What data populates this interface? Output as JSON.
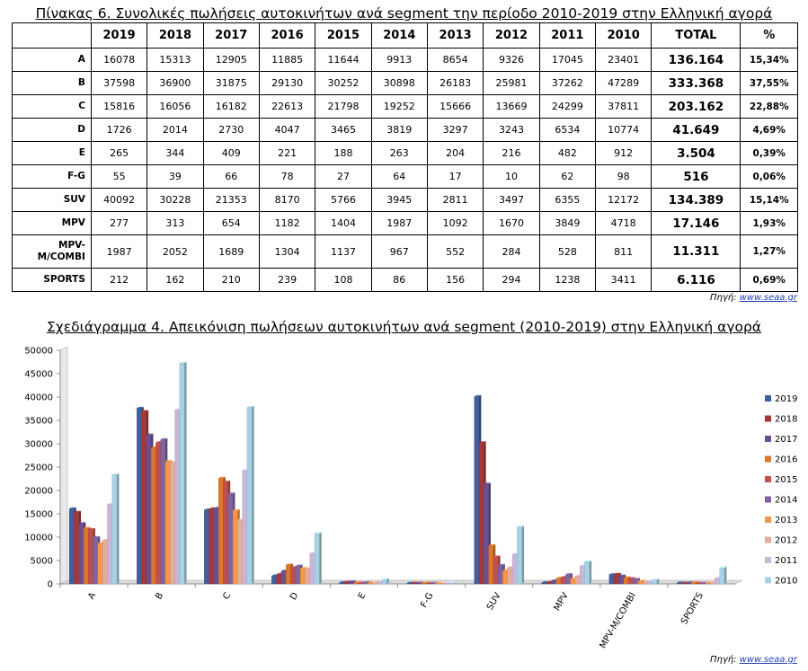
{
  "table_title": "Πίνακας 6. Συνολικές πωλήσεις αυτοκινήτων ανά segment την περίοδο 2010-2019 στην Ελληνική αγορά",
  "chart_title": "Σχεδιάγραμμα 4. Απεικόνιση πωλήσεων αυτοκινήτων ανά segment (2010-2019) στην Ελληνική αγορά",
  "source_label": "Πηγή:",
  "source_link": "www.seaa.gr",
  "table": {
    "headers": [
      "",
      "2019",
      "2018",
      "2017",
      "2016",
      "2015",
      "2014",
      "2013",
      "2012",
      "2011",
      "2010",
      "TOTAL",
      "%"
    ],
    "rows": [
      {
        "label": "A",
        "values": [
          "16078",
          "15313",
          "12905",
          "11885",
          "11644",
          "9913",
          "8654",
          "9326",
          "17045",
          "23401"
        ],
        "total": "136.164",
        "pct": "15,34%"
      },
      {
        "label": "B",
        "values": [
          "37598",
          "36900",
          "31875",
          "29130",
          "30252",
          "30898",
          "26183",
          "25981",
          "37262",
          "47289"
        ],
        "total": "333.368",
        "pct": "37,55%"
      },
      {
        "label": "C",
        "values": [
          "15816",
          "16056",
          "16182",
          "22613",
          "21798",
          "19252",
          "15666",
          "13669",
          "24299",
          "37811"
        ],
        "total": "203.162",
        "pct": "22,88%"
      },
      {
        "label": "D",
        "values": [
          "1726",
          "2014",
          "2730",
          "4047",
          "3465",
          "3819",
          "3297",
          "3243",
          "6534",
          "10774"
        ],
        "total": "41.649",
        "pct": "4,69%"
      },
      {
        "label": "E",
        "values": [
          "265",
          "344",
          "409",
          "221",
          "188",
          "263",
          "204",
          "216",
          "482",
          "912"
        ],
        "total": "3.504",
        "pct": "0,39%"
      },
      {
        "label": "F-G",
        "values": [
          "55",
          "39",
          "66",
          "78",
          "27",
          "64",
          "17",
          "10",
          "62",
          "98"
        ],
        "total": "516",
        "pct": "0,06%"
      },
      {
        "label": "SUV",
        "values": [
          "40092",
          "30228",
          "21353",
          "8170",
          "5766",
          "3945",
          "2811",
          "3497",
          "6355",
          "12172"
        ],
        "total": "134.389",
        "pct": "15,14%"
      },
      {
        "label": "MPV",
        "values": [
          "277",
          "313",
          "654",
          "1182",
          "1404",
          "1987",
          "1092",
          "1670",
          "3849",
          "4718"
        ],
        "total": "17.146",
        "pct": "1,93%"
      },
      {
        "label": "MPV-M/COMBI",
        "values": [
          "1987",
          "2052",
          "1689",
          "1304",
          "1137",
          "967",
          "552",
          "284",
          "528",
          "811"
        ],
        "total": "11.311",
        "pct": "1,27%"
      },
      {
        "label": "SPORTS",
        "values": [
          "212",
          "162",
          "210",
          "239",
          "108",
          "86",
          "156",
          "294",
          "1238",
          "3411"
        ],
        "total": "6.116",
        "pct": "0,69%"
      }
    ]
  },
  "chart_data": {
    "type": "bar",
    "title": "Σχεδιάγραμμα 4. Απεικόνιση πωλήσεων αυτοκινήτων ανά segment (2010-2019) στην Ελληνική αγορά",
    "xlabel": "",
    "ylabel": "",
    "categories": [
      "A",
      "B",
      "C",
      "D",
      "E",
      "F-G",
      "SUV",
      "MPV",
      "MPV-M/COMBI",
      "SPORTS"
    ],
    "ylim": [
      0,
      50000
    ],
    "yticks": [
      0,
      5000,
      10000,
      15000,
      20000,
      25000,
      30000,
      35000,
      40000,
      45000,
      50000
    ],
    "grid": false,
    "legend_position": "right",
    "style": "3d-clustered-column",
    "series": [
      {
        "name": "2019",
        "color": "#3f5f9f",
        "values": [
          16078,
          37598,
          15816,
          1726,
          265,
          55,
          40092,
          277,
          1987,
          212
        ]
      },
      {
        "name": "2018",
        "color": "#a3383a",
        "values": [
          15313,
          36900,
          16056,
          2014,
          344,
          39,
          30228,
          313,
          2052,
          162
        ]
      },
      {
        "name": "2017",
        "color": "#6a4e91",
        "values": [
          12905,
          31875,
          16182,
          2730,
          409,
          66,
          21353,
          654,
          1689,
          210
        ]
      },
      {
        "name": "2016",
        "color": "#d9772b",
        "values": [
          11885,
          29130,
          22613,
          4047,
          221,
          78,
          8170,
          1182,
          1304,
          239
        ]
      },
      {
        "name": "2015",
        "color": "#c0504d",
        "values": [
          11644,
          30252,
          21798,
          3465,
          188,
          27,
          5766,
          1404,
          1137,
          108
        ]
      },
      {
        "name": "2014",
        "color": "#8064a2",
        "values": [
          9913,
          30898,
          19252,
          3819,
          263,
          64,
          3945,
          1987,
          967,
          86
        ]
      },
      {
        "name": "2013",
        "color": "#f79646",
        "values": [
          8654,
          26183,
          15666,
          3297,
          204,
          17,
          2811,
          1092,
          552,
          156
        ]
      },
      {
        "name": "2012",
        "color": "#e6aca0",
        "values": [
          9326,
          25981,
          13669,
          3243,
          216,
          10,
          3497,
          1670,
          284,
          294
        ]
      },
      {
        "name": "2011",
        "color": "#c8b7d9",
        "values": [
          17045,
          37262,
          24299,
          6534,
          482,
          62,
          6355,
          3849,
          528,
          1238
        ]
      },
      {
        "name": "2010",
        "color": "#a6d3e3",
        "values": [
          23401,
          47289,
          37811,
          10774,
          912,
          98,
          12172,
          4718,
          811,
          3411
        ]
      }
    ]
  }
}
